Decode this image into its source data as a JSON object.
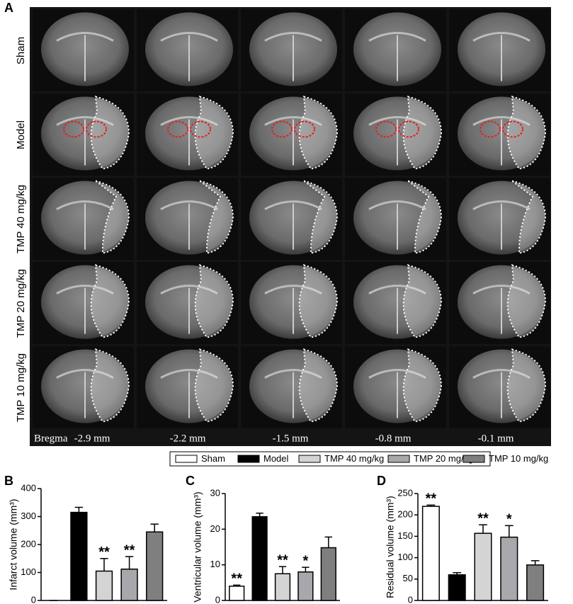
{
  "panel_a": {
    "label": "A",
    "rows": [
      "Sham",
      "Model",
      "TMP 40 mg/kg",
      "TMP 20 mg/kg",
      "TMP 10 mg/kg"
    ],
    "bregma": {
      "label": "Bregma",
      "positions": [
        "-2.9 mm",
        "-2.2 mm",
        "-1.5 mm",
        "-0.8 mm",
        "-0.1 mm"
      ]
    }
  },
  "legend": [
    {
      "name": "Sham",
      "color": "#ffffff"
    },
    {
      "name": "Model",
      "color": "#000000"
    },
    {
      "name": "TMP 40 mg/kg",
      "color": "#d4d4d4"
    },
    {
      "name": "TMP 20 mg/kg",
      "color": "#a8a8ac"
    },
    {
      "name": "TMP 10 mg/kg",
      "color": "#7f7f7f"
    }
  ],
  "chart_data": [
    {
      "type": "bar",
      "panel": "B",
      "y_label": "Infarct volume (mm³)",
      "categories": [
        null,
        null,
        null,
        null,
        null
      ],
      "values": [
        0,
        315,
        105,
        112,
        245
      ],
      "errors": [
        0,
        18,
        45,
        45,
        28
      ],
      "annotations": [
        null,
        null,
        "**",
        "**",
        null
      ],
      "ylim": [
        0,
        400
      ],
      "yticks": [
        0,
        100,
        200,
        300,
        400
      ]
    },
    {
      "type": "bar",
      "panel": "C",
      "y_label": "Ventricular volume (mm³)",
      "categories": [
        null,
        null,
        null,
        null,
        null
      ],
      "values": [
        4,
        23.5,
        7.5,
        8,
        14.8
      ],
      "errors": [
        0.3,
        1,
        2,
        1.3,
        3
      ],
      "annotations": [
        "**",
        null,
        "**",
        "*",
        null
      ],
      "ylim": [
        0,
        30
      ],
      "yticks": [
        0,
        10,
        20,
        30
      ]
    },
    {
      "type": "bar",
      "panel": "D",
      "y_label": "Residual volume (mm³)",
      "categories": [
        null,
        null,
        null,
        null,
        null
      ],
      "values": [
        220,
        60,
        157,
        148,
        83
      ],
      "errors": [
        3,
        5,
        20,
        27,
        10
      ],
      "annotations": [
        "**",
        null,
        "**",
        "*",
        null
      ],
      "ylim": [
        0,
        250
      ],
      "yticks": [
        0,
        50,
        100,
        150,
        200,
        250
      ]
    }
  ]
}
